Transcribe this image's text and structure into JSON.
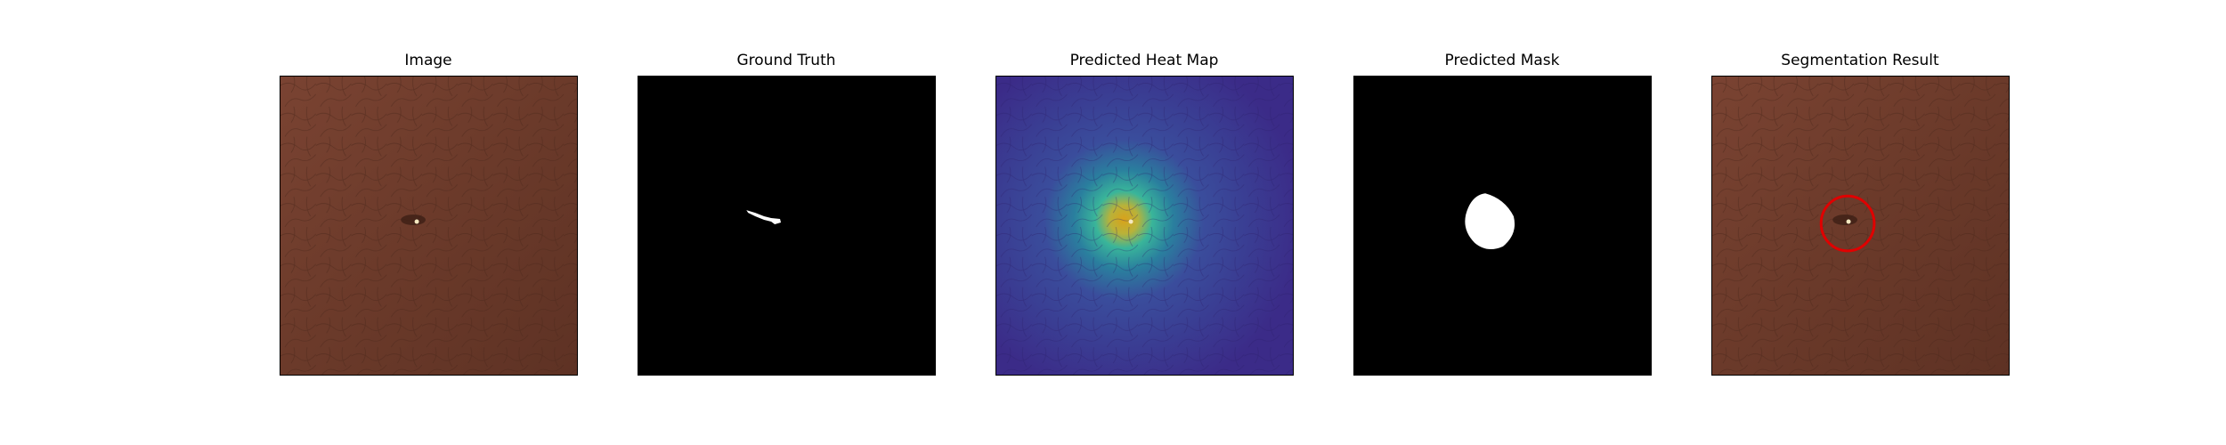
{
  "figure": {
    "panels": [
      {
        "id": "image",
        "title": "Image"
      },
      {
        "id": "ground_truth",
        "title": "Ground Truth"
      },
      {
        "id": "heat_map",
        "title": "Predicted Heat Map"
      },
      {
        "id": "mask",
        "title": "Predicted Mask"
      },
      {
        "id": "segmentation",
        "title": "Segmentation Result"
      }
    ],
    "colors": {
      "leather": "#6b3a2a",
      "mask_bg": "#000000",
      "mask_fg": "#ffffff",
      "heat_low": "#3b2f8f",
      "heat_high": "#d4a017",
      "result_circle": "#e00000"
    }
  }
}
